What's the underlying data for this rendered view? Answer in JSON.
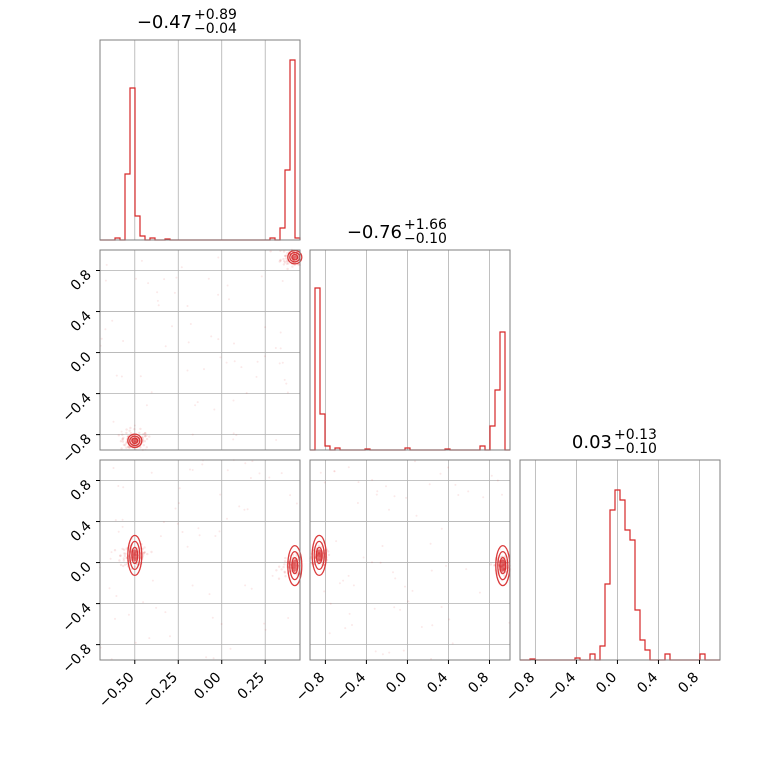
{
  "chart_data": {
    "type": "corner",
    "color": "#d62728",
    "axes": [
      {
        "range": [
          -0.7,
          0.45
        ],
        "ticks": [
          -0.5,
          -0.25,
          0.0,
          0.25
        ],
        "tick_labels": [
          "−0.50",
          "−0.25",
          "0.00",
          "0.25"
        ]
      },
      {
        "range": [
          -0.95,
          1.0
        ],
        "ticks": [
          -0.8,
          -0.4,
          0.0,
          0.4,
          0.8
        ],
        "tick_labels": [
          "−0.8",
          "−0.4",
          "0.0",
          "0.4",
          "0.8"
        ]
      },
      {
        "range": [
          -0.95,
          1.0
        ],
        "ticks": [
          -0.8,
          -0.4,
          0.0,
          0.4,
          0.8
        ],
        "tick_labels": [
          "−0.8",
          "−0.4",
          "0.0",
          "0.4",
          "0.8"
        ]
      }
    ],
    "titles": [
      {
        "value": "−0.47",
        "plus": "+0.89",
        "minus": "−0.04"
      },
      {
        "value": "−0.76",
        "plus": "+1.66",
        "minus": "−0.10"
      },
      {
        "value": "0.03",
        "plus": "+0.13",
        "minus": "−0.10"
      }
    ],
    "histograms": [
      {
        "param": 0,
        "bins": [
          [
            -0.6,
            0.01
          ],
          [
            -0.55,
            0.07
          ],
          [
            -0.53,
            0.33
          ],
          [
            -0.51,
            0.76
          ],
          [
            -0.49,
            0.12
          ],
          [
            -0.47,
            0.02
          ],
          [
            -0.4,
            0.01
          ],
          [
            -0.3,
            0.005
          ],
          [
            0.3,
            0.01
          ],
          [
            0.36,
            0.06
          ],
          [
            0.39,
            0.35
          ],
          [
            0.42,
            0.9
          ],
          [
            0.44,
            0.01
          ]
        ]
      },
      {
        "param": 1,
        "bins": [
          [
            -0.9,
            0.05
          ],
          [
            -0.86,
            0.81
          ],
          [
            -0.82,
            0.18
          ],
          [
            -0.78,
            0.02
          ],
          [
            -0.7,
            0.01
          ],
          [
            -0.4,
            0.005
          ],
          [
            0.0,
            0.01
          ],
          [
            0.4,
            0.005
          ],
          [
            0.75,
            0.02
          ],
          [
            0.82,
            0.12
          ],
          [
            0.86,
            0.3
          ],
          [
            0.92,
            0.59
          ]
        ]
      },
      {
        "param": 2,
        "bins": [
          [
            -0.85,
            0.005
          ],
          [
            -0.4,
            0.01
          ],
          [
            -0.25,
            0.03
          ],
          [
            -0.15,
            0.07
          ],
          [
            -0.1,
            0.38
          ],
          [
            -0.05,
            0.75
          ],
          [
            0.0,
            0.85
          ],
          [
            0.05,
            0.8
          ],
          [
            0.1,
            0.65
          ],
          [
            0.15,
            0.6
          ],
          [
            0.2,
            0.25
          ],
          [
            0.25,
            0.1
          ],
          [
            0.3,
            0.05
          ],
          [
            0.5,
            0.03
          ],
          [
            0.85,
            0.03
          ]
        ]
      }
    ],
    "modes": [
      {
        "p0": -0.5,
        "p1": -0.86,
        "p2": 0.07
      },
      {
        "p0": 0.42,
        "p1": 0.93,
        "p2": -0.03
      }
    ]
  }
}
